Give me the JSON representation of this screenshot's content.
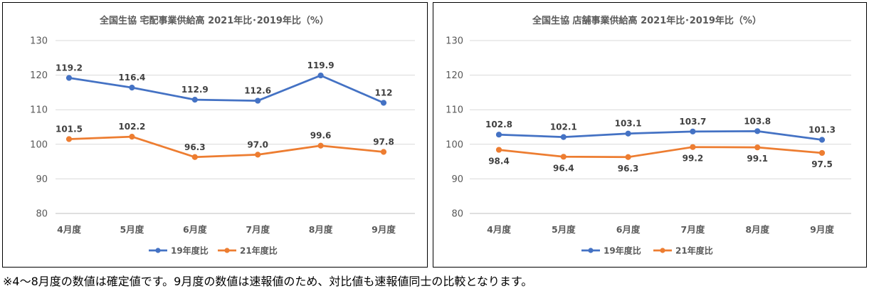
{
  "footnote": "※4～8月度の数値は確定値です。9月度の数値は速報値のため、対比値も速報値同士の比較となります。",
  "chart_data": [
    {
      "type": "line",
      "title": "全国生協 宅配事業供給高 2021年比･2019年比（%）",
      "xlabel": "",
      "ylabel": "",
      "categories": [
        "4月度",
        "5月度",
        "6月度",
        "7月度",
        "8月度",
        "9月度"
      ],
      "ylim": [
        80,
        130
      ],
      "yticks": [
        130,
        120,
        110,
        100,
        90,
        80
      ],
      "grid": true,
      "legend": "bottom",
      "series": [
        {
          "name": "19年度比",
          "color": "#4472C4",
          "values": [
            119.2,
            116.4,
            112.9,
            112.6,
            119.9,
            112.0
          ],
          "labels": [
            "119.2",
            "116.4",
            "112.9",
            "112.6",
            "119.9",
            "112"
          ],
          "label_position": "above"
        },
        {
          "name": "21年度比",
          "color": "#ED7D31",
          "values": [
            101.5,
            102.2,
            96.3,
            97.0,
            99.6,
            97.8
          ],
          "labels": [
            "101.5",
            "102.2",
            "96.3",
            "97.0",
            "99.6",
            "97.8"
          ],
          "label_position": "above"
        }
      ]
    },
    {
      "type": "line",
      "title": "全国生協 店舗事業供給高 2021年比･2019年比（%）",
      "xlabel": "",
      "ylabel": "",
      "categories": [
        "4月度",
        "5月度",
        "6月度",
        "7月度",
        "8月度",
        "9月度"
      ],
      "ylim": [
        80,
        130
      ],
      "yticks": [
        130,
        120,
        110,
        100,
        90,
        80
      ],
      "grid": true,
      "legend": "bottom",
      "series": [
        {
          "name": "19年度比",
          "color": "#4472C4",
          "values": [
            102.8,
            102.1,
            103.1,
            103.7,
            103.8,
            101.3
          ],
          "labels": [
            "102.8",
            "102.1",
            "103.1",
            "103.7",
            "103.8",
            "101.3"
          ],
          "label_position": "above"
        },
        {
          "name": "21年度比",
          "color": "#ED7D31",
          "values": [
            98.4,
            96.4,
            96.3,
            99.2,
            99.1,
            97.5
          ],
          "labels": [
            "98.4",
            "96.4",
            "96.3",
            "99.2",
            "99.1",
            "97.5"
          ],
          "label_position": "below"
        }
      ]
    }
  ]
}
